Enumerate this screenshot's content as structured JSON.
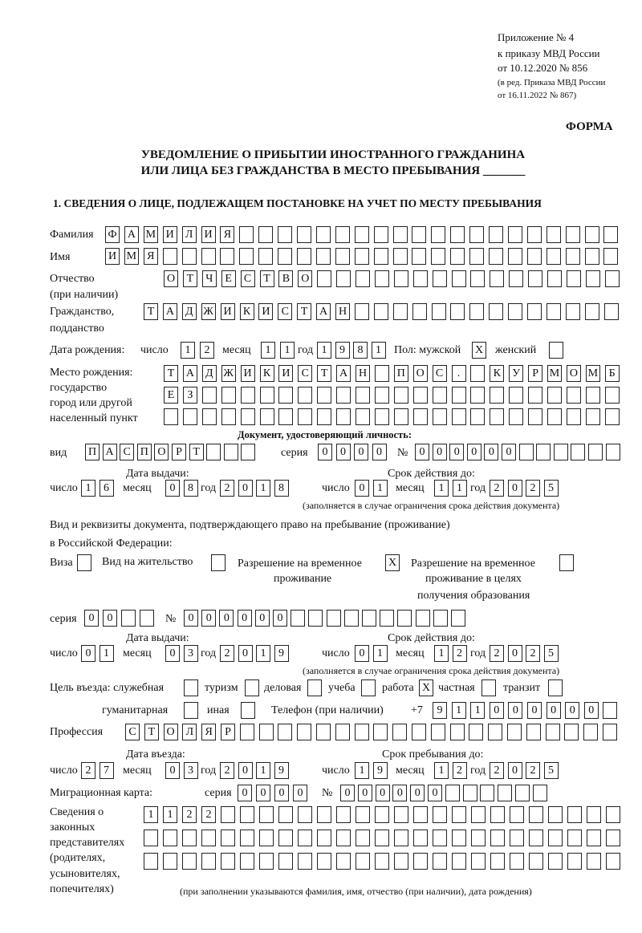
{
  "header": {
    "appendix": "Приложение № 4",
    "order": "к приказу МВД России",
    "order_date": "от 10.12.2020 № 856",
    "revision_1": "(в ред. Приказа МВД России",
    "revision_2": "от 16.11.2022 № 867)",
    "form_label": "ФОРМА"
  },
  "title": {
    "line1": "УВЕДОМЛЕНИЕ О ПРИБЫТИИ ИНОСТРАННОГО ГРАЖДАНИНА",
    "line2": "ИЛИ ЛИЦА БЕЗ ГРАЖДАНСТВА В МЕСТО ПРЕБЫВАНИЯ _______"
  },
  "section1": {
    "heading": "1. СВЕДЕНИЯ О ЛИЦЕ, ПОДЛЕЖАЩЕМ ПОСТАНОВКЕ НА УЧЕТ ПО МЕСТУ ПРЕБЫВАНИЯ",
    "surname": {
      "label": "Фамилия",
      "value": "ФАМИЛИЯ"
    },
    "name": {
      "label": "Имя",
      "value": "ИМЯ"
    },
    "patronymic": {
      "label": "Отчество",
      "label2": "(при наличии)",
      "value": "ОТЧЕСТВО"
    },
    "citizenship": {
      "label": "Гражданство,",
      "label2": "подданство",
      "value": "ТАДЖИКИСТАН"
    },
    "birth_date": {
      "label": "Дата рождения:",
      "day_label": "число",
      "day": "12",
      "month_label": "месяц",
      "month": "11",
      "year_label": "год",
      "year": "1981"
    },
    "sex": {
      "label": "Пол: мужской",
      "male": "X",
      "female_label": "женский",
      "female": ""
    },
    "birth_place": {
      "label1": "Место рождения:",
      "label2": "государство",
      "label3": "город или другой",
      "label4": "населенный пункт",
      "line1": "ТАДЖИКИСТАН ПОС. КУРМОМБ",
      "line2": "ЕЗ",
      "line3": ""
    },
    "id_document": {
      "heading": "Документ, удостоверяющий личность:",
      "type_label": "вид",
      "type": "ПАСПОРТ",
      "series_label": "серия",
      "series": "0000",
      "number_label": "№",
      "number": "000000",
      "issue_label": "Дата выдачи:",
      "issue_day": "16",
      "issue_month": "08",
      "issue_year": "2018",
      "valid_label": "Срок действия до:",
      "valid_day": "01",
      "valid_month": "11",
      "valid_year": "2025",
      "note": "(заполняется в случае ограничения срока действия документа)"
    },
    "stay_document": {
      "heading1": "Вид и реквизиты документа, подтверждающего право на пребывание (проживание)",
      "heading2": "в Российской Федерации:",
      "visa_label": "Виза",
      "visa": "",
      "residence_label": "Вид на жительство",
      "residence": "",
      "trp_label1": "Разрешение на временное",
      "trp_label2": "проживание",
      "trp": "X",
      "trp_edu_label1": "Разрешение на временное",
      "trp_edu_label2": "проживание в целях",
      "trp_edu_label3": "получения образования",
      "trp_edu": "",
      "series_label": "серия",
      "series": "00",
      "number_label": "№",
      "number": "000000",
      "issue_label": "Дата выдачи:",
      "issue_day": "01",
      "issue_month": "03",
      "issue_year": "2019",
      "valid_label": "Срок действия до:",
      "valid_day": "01",
      "valid_month": "12",
      "valid_year": "2025",
      "note": "(заполняется в случае ограничения срока действия документа)"
    },
    "purpose": {
      "label": "Цель въезда: служебная",
      "official": "",
      "tourism_label": "туризм",
      "tourism": "",
      "business_label": "деловая",
      "business": "",
      "study_label": "учеба",
      "study": "",
      "work_label": "работа",
      "work": "X",
      "private_label": "частная",
      "private": "",
      "transit_label": "транзит",
      "transit": "",
      "humanitarian_label": "гуманитарная",
      "humanitarian": "",
      "other_label": "иная",
      "other": ""
    },
    "phone": {
      "label": "Телефон (при наличии)",
      "prefix": "+7",
      "value": "911000000"
    },
    "profession": {
      "label": "Профессия",
      "value": "СТОЛЯР"
    },
    "entry": {
      "entry_label": "Дата въезда:",
      "day": "27",
      "month": "03",
      "year": "2019",
      "until_label": "Срок пребывания до:",
      "until_day": "19",
      "until_month": "12",
      "until_year": "2025"
    },
    "migration_card": {
      "label": "Миграционная карта:",
      "series_label": "серия",
      "series": "0000",
      "number_label": "№",
      "number": "000000"
    },
    "representatives": {
      "label1": "Сведения о",
      "label2": "законных",
      "label3": "представителях",
      "label4": "(родителях,",
      "label5": "усыновителях,",
      "label6": "попечителях)",
      "line1": "1122",
      "line2": "",
      "line3": "",
      "note": "(при заполнении указываются фамилия, имя, отчество (при наличии), дата рождения)"
    },
    "common": {
      "day_label": "число",
      "month_label": "месяц",
      "year_label": "год"
    }
  }
}
